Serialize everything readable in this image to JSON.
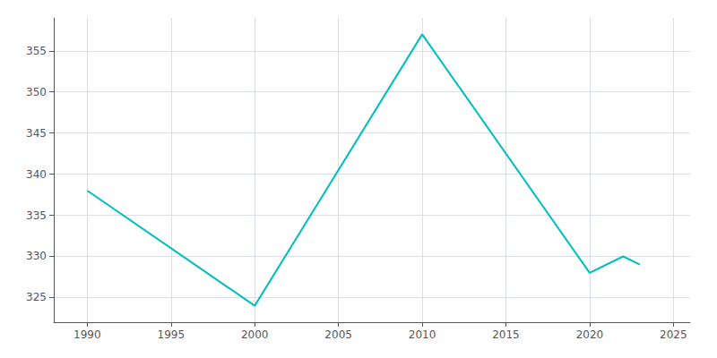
{
  "chart_data": {
    "type": "line",
    "x": [
      1990,
      2000,
      2010,
      2020,
      2022,
      2023
    ],
    "values": [
      338,
      324,
      357,
      328,
      330,
      329
    ],
    "color": "#00BEBE",
    "xlim": [
      1988,
      2026
    ],
    "ylim": [
      322,
      359
    ],
    "xticks": [
      1990,
      1995,
      2000,
      2005,
      2010,
      2015,
      2020,
      2025
    ],
    "yticks": [
      325,
      330,
      335,
      340,
      345,
      350,
      355
    ],
    "grid": true
  }
}
